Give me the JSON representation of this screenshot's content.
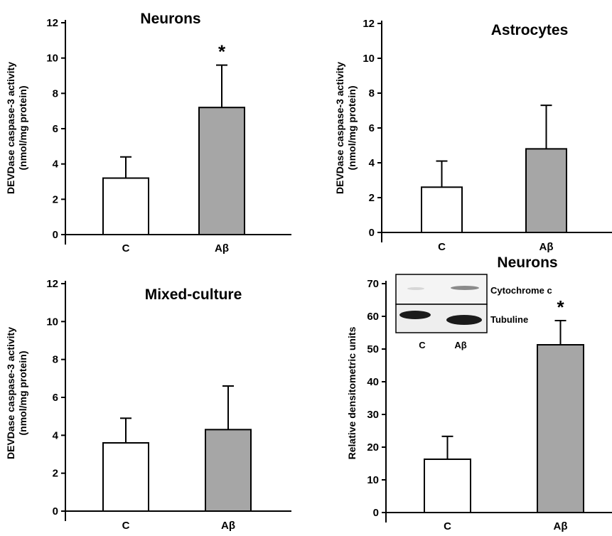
{
  "colors": {
    "control": "#ffffff",
    "abeta": "#a6a6a6",
    "axis": "#000000"
  },
  "chart_data": [
    {
      "type": "bar",
      "title": "Neurons",
      "ylabel": "DEVDase caspase-3 activity\n(nmol/mg protein)",
      "ylim": [
        0,
        12
      ],
      "yticks": [
        "0",
        "2",
        "4",
        "6",
        "8",
        "10",
        "12"
      ],
      "categories": [
        "C",
        "Aβ"
      ],
      "values": [
        3.2,
        7.2
      ],
      "errors": [
        1.2,
        2.4
      ],
      "significance": [
        "",
        "*"
      ]
    },
    {
      "type": "bar",
      "title": "Astrocytes",
      "ylabel": "DEVDase caspase-3 activity\n(nmol/mg protein)",
      "ylim": [
        0,
        12
      ],
      "yticks": [
        "0",
        "2",
        "4",
        "6",
        "8",
        "10",
        "12"
      ],
      "categories": [
        "C",
        "Aβ"
      ],
      "values": [
        2.6,
        4.8
      ],
      "errors": [
        1.5,
        2.5
      ],
      "significance": [
        "",
        ""
      ]
    },
    {
      "type": "bar",
      "title": "Mixed-culture",
      "ylabel": "DEVDase caspase-3 activity\n(nmol/mg protein)",
      "ylim": [
        0,
        12
      ],
      "yticks": [
        "0",
        "2",
        "4",
        "6",
        "8",
        "10",
        "12"
      ],
      "categories": [
        "C",
        "Aβ"
      ],
      "values": [
        3.6,
        4.3
      ],
      "errors": [
        1.3,
        2.3
      ],
      "significance": [
        "",
        ""
      ]
    },
    {
      "type": "bar",
      "title": "Neurons",
      "ylabel": "Relative densitometric units",
      "ylim": [
        0,
        70
      ],
      "yticks": [
        "0",
        "10",
        "20",
        "30",
        "40",
        "50",
        "60",
        "70"
      ],
      "categories": [
        "C",
        "Aβ"
      ],
      "values": [
        16.3,
        51.3
      ],
      "errors": [
        7.0,
        7.4
      ],
      "significance": [
        "",
        "*"
      ],
      "inset": {
        "row_labels": [
          "Cytochrome c",
          "Tubuline"
        ],
        "lane_labels": [
          "C",
          "Aβ"
        ]
      }
    }
  ]
}
